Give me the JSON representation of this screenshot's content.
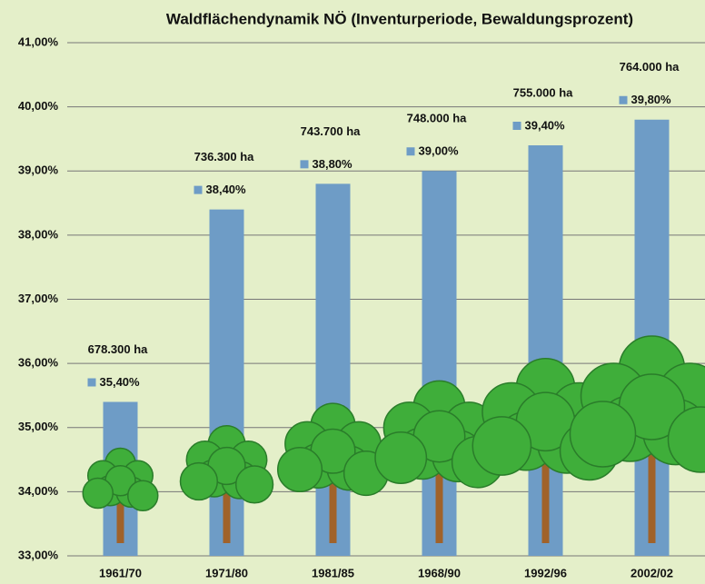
{
  "chart_data": {
    "type": "bar",
    "title": "Waldflächendynamik NÖ (Inventurperiode, Bewaldungsprozent)",
    "categories": [
      "1961/70",
      "1971/80",
      "1981/85",
      "1968/90",
      "1992/96",
      "2002/02"
    ],
    "values": [
      35.4,
      38.4,
      38.8,
      39.0,
      39.4,
      39.8
    ],
    "value_labels": [
      "35,40%",
      "38,40%",
      "38,80%",
      "39,00%",
      "39,40%",
      "39,80%"
    ],
    "annotations": [
      "678.300 ha",
      "736.300 ha",
      "743.700 ha",
      "748.000 ha",
      "755.000 ha",
      "764.000 ha"
    ],
    "color": "#6e9cc6",
    "ylim": [
      33,
      41
    ],
    "yticks": [
      {
        "value": 33,
        "label": "33,00%"
      },
      {
        "value": 34,
        "label": "34,00%"
      },
      {
        "value": 35,
        "label": "35,00%"
      },
      {
        "value": 36,
        "label": "36,00%"
      },
      {
        "value": 37,
        "label": "37,00%"
      },
      {
        "value": 38,
        "label": "38,00%"
      },
      {
        "value": 39,
        "label": "39,00%"
      },
      {
        "value": 40,
        "label": "40,00%"
      },
      {
        "value": 41,
        "label": "41,00%"
      }
    ],
    "grid": true
  }
}
